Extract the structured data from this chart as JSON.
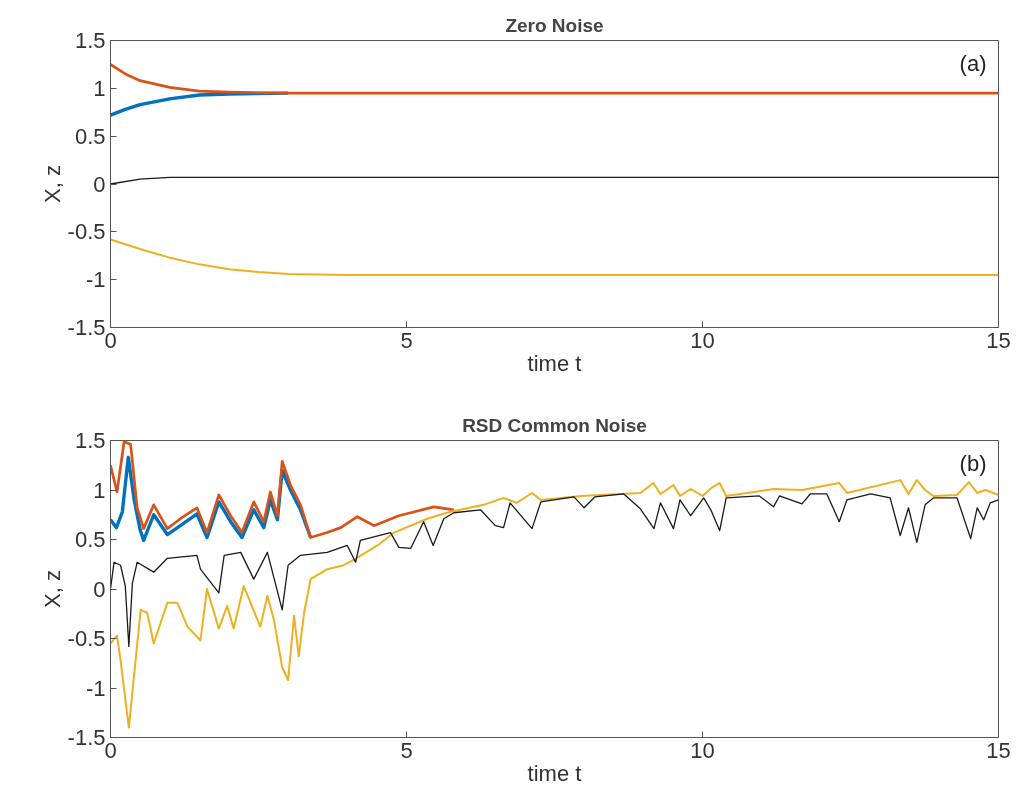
{
  "chart_data": [
    {
      "type": "line",
      "title": "Zero Noise",
      "xlabel": "time t",
      "ylabel": "X, z",
      "annotations": [
        "(a)"
      ],
      "xlim": [
        0,
        15
      ],
      "ylim": [
        -1.5,
        1.5
      ],
      "xticks": [
        0,
        5,
        10,
        15
      ],
      "yticks": [
        -1.5,
        -1,
        -0.5,
        0,
        0.5,
        1,
        1.5
      ],
      "grid": false,
      "series": [
        {
          "color": "#0072bd",
          "x": [
            0,
            0.25,
            0.5,
            1,
            1.5,
            2,
            3
          ],
          "values": [
            0.72,
            0.78,
            0.83,
            0.89,
            0.93,
            0.94,
            0.95
          ]
        },
        {
          "color": "#d95319",
          "x": [
            0,
            0.25,
            0.5,
            1,
            1.5,
            2,
            3,
            15
          ],
          "values": [
            1.25,
            1.15,
            1.08,
            1.01,
            0.97,
            0.96,
            0.95,
            0.95
          ]
        },
        {
          "color": "#edb120",
          "x": [
            0,
            0.5,
            1,
            1.5,
            2,
            2.5,
            3,
            4,
            15
          ],
          "values": [
            -0.58,
            -0.68,
            -0.77,
            -0.84,
            -0.89,
            -0.92,
            -0.94,
            -0.95,
            -0.95
          ]
        },
        {
          "color": "#1a1a1a",
          "x": [
            0,
            0.5,
            1,
            2,
            15
          ],
          "values": [
            0.0,
            0.05,
            0.07,
            0.07,
            0.07
          ]
        }
      ]
    },
    {
      "type": "line",
      "title": "RSD Common Noise",
      "xlabel": "time t",
      "ylabel": "X, z",
      "annotations": [
        "(b)"
      ],
      "xlim": [
        0,
        15
      ],
      "ylim": [
        -1.5,
        1.5
      ],
      "xticks": [
        0,
        5,
        10,
        15
      ],
      "yticks": [
        -1.5,
        -1,
        -0.5,
        0,
        0.5,
        1,
        1.5
      ],
      "grid": false,
      "series": [
        {
          "color": "#0072bd",
          "x": [
            0,
            0.1,
            0.2,
            0.3,
            0.4,
            0.5,
            0.56,
            0.73,
            0.96,
            1.18,
            1.46,
            1.63,
            1.83,
            2.03,
            2.22,
            2.42,
            2.59,
            2.7,
            2.82,
            2.9,
            3.04,
            3.21,
            3.38
          ],
          "values": [
            0.7,
            0.62,
            0.78,
            1.33,
            0.9,
            0.6,
            0.49,
            0.75,
            0.55,
            0.64,
            0.76,
            0.52,
            0.88,
            0.68,
            0.52,
            0.8,
            0.62,
            0.9,
            0.7,
            1.2,
            1.0,
            0.8,
            0.52
          ]
        },
        {
          "color": "#d95319",
          "x": [
            0,
            0.11,
            0.23,
            0.34,
            0.45,
            0.56,
            0.73,
            0.96,
            1.18,
            1.46,
            1.63,
            1.83,
            2.03,
            2.22,
            2.42,
            2.59,
            2.7,
            2.82,
            2.9,
            3.04,
            3.21,
            3.38,
            3.66,
            3.89,
            4.17,
            4.45,
            4.87,
            5.07,
            5.46,
            5.8
          ],
          "values": [
            1.25,
            0.98,
            1.49,
            1.46,
            0.82,
            0.61,
            0.85,
            0.61,
            0.71,
            0.82,
            0.57,
            0.95,
            0.74,
            0.57,
            0.88,
            0.68,
            0.98,
            0.74,
            1.29,
            1.05,
            0.85,
            0.52,
            0.57,
            0.62,
            0.73,
            0.64,
            0.74,
            0.77,
            0.83,
            0.8
          ]
        },
        {
          "color": "#edb120",
          "x": [
            0,
            0.11,
            0.17,
            0.31,
            0.39,
            0.51,
            0.62,
            0.73,
            0.96,
            1.13,
            1.3,
            1.52,
            1.63,
            1.83,
            1.97,
            2.08,
            2.25,
            2.53,
            2.65,
            2.76,
            2.9,
            3.0,
            3.1,
            3.18,
            3.27,
            3.38,
            3.66,
            3.94,
            4.12,
            4.51,
            4.79,
            5.35,
            5.74,
            6.3,
            6.64,
            6.86,
            7.12,
            7.27,
            7.94,
            8.95,
            9.17,
            9.29,
            9.51,
            9.62,
            9.8,
            10.0,
            10.17,
            10.29,
            10.4,
            11.2,
            11.68,
            12.31,
            12.44,
            13.34,
            13.48,
            13.62,
            13.76,
            13.9,
            14.3,
            14.5,
            14.64,
            14.78,
            15
          ],
          "values": [
            -0.55,
            -0.47,
            -0.72,
            -1.4,
            -0.92,
            -0.21,
            -0.24,
            -0.55,
            -0.14,
            -0.14,
            -0.38,
            -0.52,
            0.0,
            -0.4,
            -0.17,
            -0.4,
            0.03,
            -0.38,
            -0.07,
            -0.31,
            -0.79,
            -0.92,
            -0.27,
            -0.68,
            -0.24,
            0.1,
            0.2,
            0.24,
            0.3,
            0.44,
            0.57,
            0.71,
            0.78,
            0.85,
            0.92,
            0.87,
            0.97,
            0.9,
            0.94,
            0.97,
            1.07,
            0.96,
            1.05,
            0.94,
            1.01,
            0.94,
            1.03,
            1.07,
            0.94,
            1.01,
            1.0,
            1.07,
            0.97,
            1.1,
            0.96,
            1.1,
            1.0,
            0.94,
            0.95,
            1.08,
            0.97,
            1.0,
            0.95
          ]
        },
        {
          "color": "#1a1a1a",
          "x": [
            0,
            0.06,
            0.17,
            0.25,
            0.31,
            0.37,
            0.45,
            0.73,
            0.96,
            1.46,
            1.52,
            1.83,
            1.92,
            2.2,
            2.42,
            2.65,
            2.9,
            3.0,
            3.21,
            3.66,
            4.0,
            4.14,
            4.22,
            4.73,
            4.87,
            5.07,
            5.29,
            5.45,
            5.63,
            5.8,
            6.25,
            6.5,
            6.64,
            6.75,
            7.12,
            7.27,
            7.83,
            8.0,
            8.18,
            8.67,
            8.95,
            9.18,
            9.29,
            9.51,
            9.62,
            9.8,
            10.02,
            10.14,
            10.29,
            10.4,
            10.96,
            11.2,
            11.3,
            11.68,
            11.82,
            12.1,
            12.31,
            12.44,
            12.84,
            13.17,
            13.34,
            13.48,
            13.62,
            13.76,
            13.9,
            14.3,
            14.53,
            14.64,
            14.75,
            14.86,
            15
          ],
          "values": [
            0.0,
            0.27,
            0.24,
            0.03,
            -0.58,
            0.06,
            0.27,
            0.17,
            0.31,
            0.34,
            0.2,
            -0.04,
            0.34,
            0.37,
            0.1,
            0.37,
            -0.21,
            0.24,
            0.34,
            0.37,
            0.44,
            0.27,
            0.49,
            0.57,
            0.42,
            0.41,
            0.68,
            0.44,
            0.71,
            0.77,
            0.8,
            0.64,
            0.62,
            0.87,
            0.61,
            0.88,
            0.93,
            0.82,
            0.93,
            0.96,
            0.81,
            0.61,
            0.87,
            0.61,
            0.9,
            0.74,
            0.92,
            0.8,
            0.59,
            0.92,
            0.94,
            0.83,
            0.94,
            0.86,
            0.96,
            0.96,
            0.68,
            0.9,
            0.96,
            0.92,
            0.54,
            0.82,
            0.47,
            0.85,
            0.92,
            0.92,
            0.51,
            0.82,
            0.7,
            0.87,
            0.9
          ]
        }
      ]
    }
  ]
}
